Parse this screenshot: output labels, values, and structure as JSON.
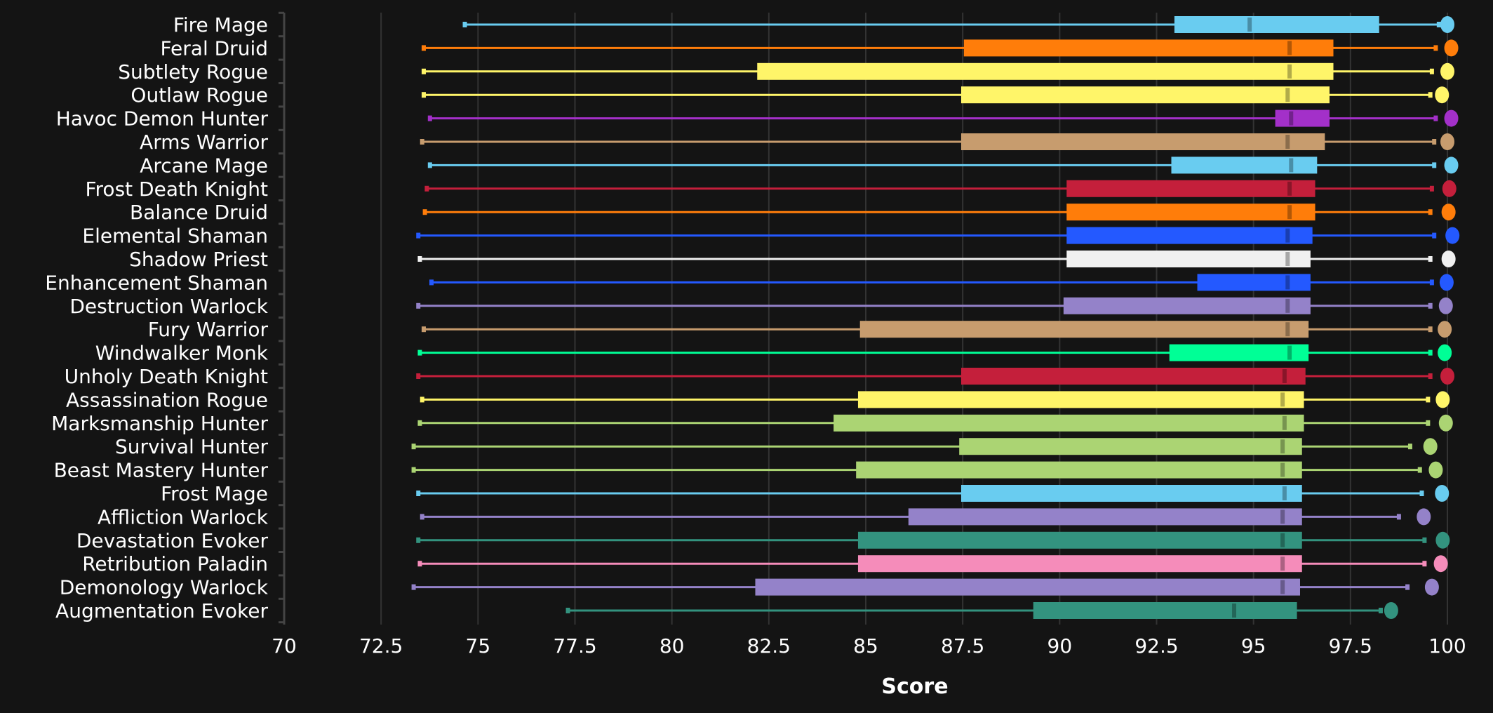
{
  "chart_data": {
    "type": "box",
    "title": "",
    "xlabel": "Score",
    "ylabel": "",
    "xlim": [
      70,
      100
    ],
    "xticks": [
      "70",
      "72.5",
      "75",
      "77.5",
      "80",
      "82.5",
      "85",
      "87.5",
      "90",
      "92.5",
      "95",
      "97.5",
      "100"
    ],
    "grid": true,
    "orientation": "horizontal",
    "series": [
      {
        "name": "Fire Mage",
        "color": "#69ccf0",
        "min": 74.66,
        "q1": 92.96,
        "median": 94.9,
        "q3": 98.24,
        "max": 99.78,
        "dot": 100.0
      },
      {
        "name": "Feral Druid",
        "color": "#ff7d0a",
        "min": 73.6,
        "q1": 87.53,
        "median": 95.93,
        "q3": 97.06,
        "max": 99.7,
        "dot": 100.1
      },
      {
        "name": "Subtlety Rogue",
        "color": "#fff569",
        "min": 73.6,
        "q1": 82.2,
        "median": 95.93,
        "q3": 97.06,
        "max": 99.6,
        "dot": 100.0
      },
      {
        "name": "Outlaw Rogue",
        "color": "#fff569",
        "min": 73.6,
        "q1": 87.46,
        "median": 95.88,
        "q3": 96.96,
        "max": 99.56,
        "dot": 99.86
      },
      {
        "name": "Havoc Demon Hunter",
        "color": "#a330c9",
        "min": 73.76,
        "q1": 95.56,
        "median": 95.97,
        "q3": 96.96,
        "max": 99.7,
        "dot": 100.1
      },
      {
        "name": "Arms Warrior",
        "color": "#c79c6e",
        "min": 73.56,
        "q1": 87.46,
        "median": 95.88,
        "q3": 96.84,
        "max": 99.66,
        "dot": 100.0
      },
      {
        "name": "Arcane Mage",
        "color": "#69ccf0",
        "min": 73.76,
        "q1": 92.88,
        "median": 95.97,
        "q3": 96.64,
        "max": 99.66,
        "dot": 100.1
      },
      {
        "name": "Frost Death Knight",
        "color": "#c41f3b",
        "min": 73.68,
        "q1": 90.18,
        "median": 95.93,
        "q3": 96.59,
        "max": 99.6,
        "dot": 100.05
      },
      {
        "name": "Balance Druid",
        "color": "#ff7d0a",
        "min": 73.63,
        "q1": 90.18,
        "median": 95.93,
        "q3": 96.59,
        "max": 99.56,
        "dot": 100.03
      },
      {
        "name": "Elemental Shaman",
        "color": "#2459ff",
        "min": 73.46,
        "q1": 90.18,
        "median": 95.88,
        "q3": 96.52,
        "max": 99.66,
        "dot": 100.13
      },
      {
        "name": "Shadow Priest",
        "color": "#f0f0f0",
        "min": 73.5,
        "q1": 90.18,
        "median": 95.88,
        "q3": 96.47,
        "max": 99.56,
        "dot": 100.03
      },
      {
        "name": "Enhancement Shaman",
        "color": "#2459ff",
        "min": 73.8,
        "q1": 93.55,
        "median": 95.88,
        "q3": 96.47,
        "max": 99.6,
        "dot": 99.98
      },
      {
        "name": "Destruction Warlock",
        "color": "#9482c9",
        "min": 73.46,
        "q1": 90.1,
        "median": 95.88,
        "q3": 96.47,
        "max": 99.56,
        "dot": 99.96
      },
      {
        "name": "Fury Warrior",
        "color": "#c79c6e",
        "min": 73.6,
        "q1": 84.85,
        "median": 95.88,
        "q3": 96.42,
        "max": 99.56,
        "dot": 99.93
      },
      {
        "name": "Windwalker Monk",
        "color": "#00ff96",
        "min": 73.5,
        "q1": 92.83,
        "median": 95.93,
        "q3": 96.42,
        "max": 99.56,
        "dot": 99.93
      },
      {
        "name": "Unholy Death Knight",
        "color": "#c41f3b",
        "min": 73.46,
        "q1": 87.46,
        "median": 95.8,
        "q3": 96.34,
        "max": 99.56,
        "dot": 100.0
      },
      {
        "name": "Assassination Rogue",
        "color": "#fff569",
        "min": 73.56,
        "q1": 84.8,
        "median": 95.75,
        "q3": 96.3,
        "max": 99.5,
        "dot": 99.88
      },
      {
        "name": "Marksmanship Hunter",
        "color": "#abd473",
        "min": 73.5,
        "q1": 84.17,
        "median": 95.8,
        "q3": 96.3,
        "max": 99.5,
        "dot": 99.96
      },
      {
        "name": "Survival Hunter",
        "color": "#abd473",
        "min": 73.34,
        "q1": 87.41,
        "median": 95.75,
        "q3": 96.25,
        "max": 99.04,
        "dot": 99.56
      },
      {
        "name": "Beast Mastery Hunter",
        "color": "#abd473",
        "min": 73.34,
        "q1": 84.75,
        "median": 95.75,
        "q3": 96.25,
        "max": 99.29,
        "dot": 99.7
      },
      {
        "name": "Frost Mage",
        "color": "#69ccf0",
        "min": 73.46,
        "q1": 87.46,
        "median": 95.8,
        "q3": 96.25,
        "max": 99.34,
        "dot": 99.86
      },
      {
        "name": "Affliction Warlock",
        "color": "#9482c9",
        "min": 73.56,
        "q1": 86.1,
        "median": 95.75,
        "q3": 96.25,
        "max": 98.75,
        "dot": 99.39
      },
      {
        "name": "Devastation Evoker",
        "color": "#33937f",
        "min": 73.46,
        "q1": 84.8,
        "median": 95.75,
        "q3": 96.25,
        "max": 99.41,
        "dot": 99.88
      },
      {
        "name": "Retribution Paladin",
        "color": "#f58cba",
        "min": 73.5,
        "q1": 84.8,
        "median": 95.75,
        "q3": 96.25,
        "max": 99.41,
        "dot": 99.83
      },
      {
        "name": "Demonology Warlock",
        "color": "#9482c9",
        "min": 73.34,
        "q1": 82.15,
        "median": 95.75,
        "q3": 96.2,
        "max": 98.97,
        "dot": 99.6
      },
      {
        "name": "Augmentation Evoker",
        "color": "#33937f",
        "min": 77.32,
        "q1": 89.32,
        "median": 94.5,
        "q3": 96.12,
        "max": 98.28,
        "dot": 98.55
      }
    ]
  }
}
